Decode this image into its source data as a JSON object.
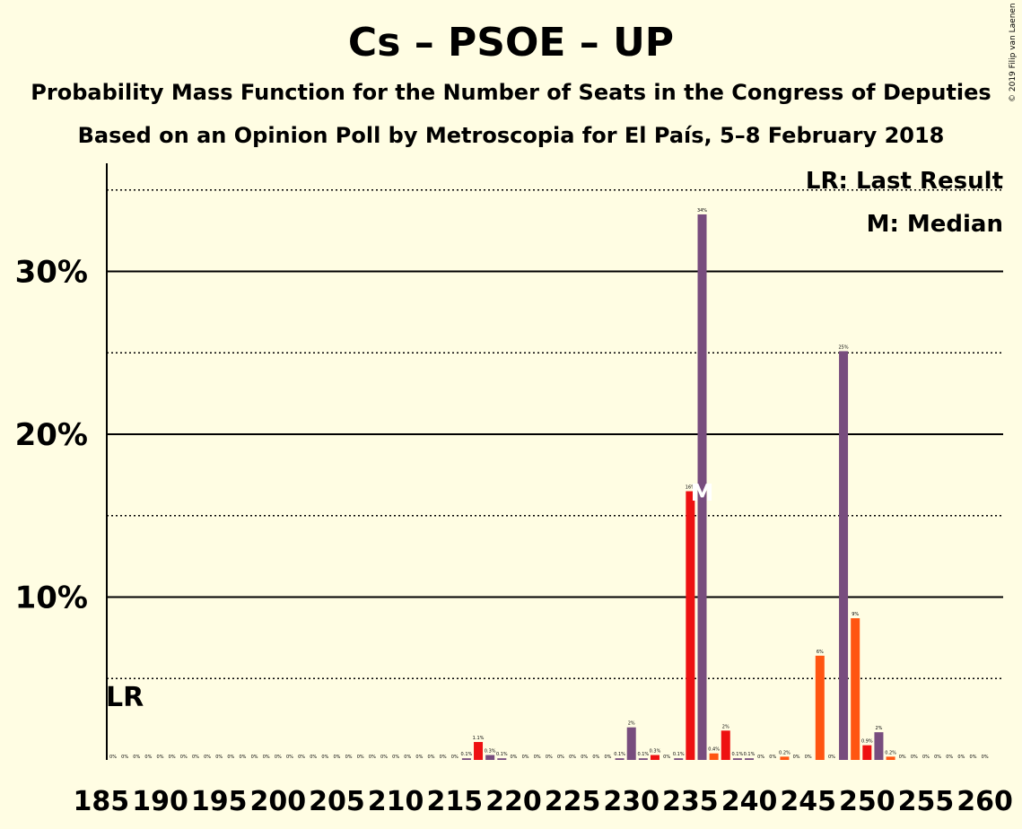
{
  "title": "Cs – PSOE – UP",
  "subtitle_1": "Probability Mass Function for the Number of Seats in the Congress of Deputies",
  "subtitle_2": "Based on an Opinion Poll by Metroscopia for El País, 5–8 February 2018",
  "copyright": "© 2019 Filip van Laenen",
  "legend": {
    "lr": "LR: Last Result",
    "median": "M: Median"
  },
  "markers": {
    "last_result_label": "LR",
    "last_result_seat": 187,
    "median_label": "M",
    "median_seat": 236
  },
  "colors": {
    "background": "#fffde3",
    "red": "#ee1111",
    "orange": "#ff5511",
    "purple": "#784d7e"
  },
  "chart_data": {
    "type": "bar",
    "xlim": [
      185,
      260
    ],
    "ylim": [
      0,
      35
    ],
    "y_ticks": [
      10,
      20,
      30
    ],
    "y_tick_labels": [
      "10%",
      "20%",
      "30%"
    ],
    "x_ticks": [
      185,
      190,
      195,
      200,
      205,
      210,
      215,
      220,
      225,
      230,
      235,
      240,
      245,
      250,
      255,
      260
    ],
    "x_tick_labels": [
      "185",
      "190",
      "195",
      "200",
      "205",
      "210",
      "215",
      "220",
      "225",
      "230",
      "235",
      "240",
      "245",
      "250",
      "255",
      "260"
    ],
    "bars": [
      {
        "x": 186,
        "v": 0,
        "label": "0%",
        "c": "purple"
      },
      {
        "x": 187,
        "v": 0,
        "label": "0%",
        "c": "purple"
      },
      {
        "x": 188,
        "v": 0,
        "label": "0%",
        "c": "purple"
      },
      {
        "x": 189,
        "v": 0,
        "label": "0%",
        "c": "purple"
      },
      {
        "x": 190,
        "v": 0,
        "label": "0%",
        "c": "purple"
      },
      {
        "x": 191,
        "v": 0,
        "label": "0%",
        "c": "purple"
      },
      {
        "x": 192,
        "v": 0,
        "label": "0%",
        "c": "purple"
      },
      {
        "x": 193,
        "v": 0,
        "label": "0%",
        "c": "purple"
      },
      {
        "x": 194,
        "v": 0,
        "label": "0%",
        "c": "purple"
      },
      {
        "x": 195,
        "v": 0,
        "label": "0%",
        "c": "purple"
      },
      {
        "x": 196,
        "v": 0,
        "label": "0%",
        "c": "purple"
      },
      {
        "x": 197,
        "v": 0,
        "label": "0%",
        "c": "purple"
      },
      {
        "x": 198,
        "v": 0,
        "label": "0%",
        "c": "purple"
      },
      {
        "x": 199,
        "v": 0,
        "label": "0%",
        "c": "purple"
      },
      {
        "x": 200,
        "v": 0,
        "label": "0%",
        "c": "purple"
      },
      {
        "x": 201,
        "v": 0,
        "label": "0%",
        "c": "purple"
      },
      {
        "x": 202,
        "v": 0,
        "label": "0%",
        "c": "purple"
      },
      {
        "x": 203,
        "v": 0,
        "label": "0%",
        "c": "purple"
      },
      {
        "x": 204,
        "v": 0,
        "label": "0%",
        "c": "purple"
      },
      {
        "x": 205,
        "v": 0,
        "label": "0%",
        "c": "purple"
      },
      {
        "x": 206,
        "v": 0,
        "label": "0%",
        "c": "purple"
      },
      {
        "x": 207,
        "v": 0,
        "label": "0%",
        "c": "purple"
      },
      {
        "x": 208,
        "v": 0,
        "label": "0%",
        "c": "purple"
      },
      {
        "x": 209,
        "v": 0,
        "label": "0%",
        "c": "purple"
      },
      {
        "x": 210,
        "v": 0,
        "label": "0%",
        "c": "purple"
      },
      {
        "x": 211,
        "v": 0,
        "label": "0%",
        "c": "purple"
      },
      {
        "x": 212,
        "v": 0,
        "label": "0%",
        "c": "purple"
      },
      {
        "x": 213,
        "v": 0,
        "label": "0%",
        "c": "purple"
      },
      {
        "x": 214,
        "v": 0,
        "label": "0%",
        "c": "purple"
      },
      {
        "x": 215,
        "v": 0,
        "label": "0%",
        "c": "purple"
      },
      {
        "x": 216,
        "v": 0.1,
        "label": "0.1%",
        "c": "purple"
      },
      {
        "x": 217,
        "v": 1.1,
        "label": "1.1%",
        "c": "red"
      },
      {
        "x": 218,
        "v": 0.3,
        "label": "0.3%",
        "c": "purple"
      },
      {
        "x": 219,
        "v": 0.1,
        "label": "0.1%",
        "c": "purple"
      },
      {
        "x": 220,
        "v": 0,
        "label": "0%",
        "c": "purple"
      },
      {
        "x": 221,
        "v": 0,
        "label": "0%",
        "c": "purple"
      },
      {
        "x": 222,
        "v": 0,
        "label": "0%",
        "c": "purple"
      },
      {
        "x": 223,
        "v": 0,
        "label": "0%",
        "c": "purple"
      },
      {
        "x": 224,
        "v": 0,
        "label": "0%",
        "c": "purple"
      },
      {
        "x": 225,
        "v": 0,
        "label": "0%",
        "c": "purple"
      },
      {
        "x": 226,
        "v": 0,
        "label": "0%",
        "c": "purple"
      },
      {
        "x": 227,
        "v": 0,
        "label": "0%",
        "c": "purple"
      },
      {
        "x": 228,
        "v": 0,
        "label": "0%",
        "c": "purple"
      },
      {
        "x": 229,
        "v": 0.1,
        "label": "0.1%",
        "c": "purple"
      },
      {
        "x": 230,
        "v": 2.0,
        "label": "2%",
        "c": "purple"
      },
      {
        "x": 231,
        "v": 0.1,
        "label": "0.1%",
        "c": "purple"
      },
      {
        "x": 232,
        "v": 0.3,
        "label": "0.3%",
        "c": "red"
      },
      {
        "x": 233,
        "v": 0,
        "label": "0%",
        "c": "purple"
      },
      {
        "x": 234,
        "v": 0.1,
        "label": "0.1%",
        "c": "purple"
      },
      {
        "x": 235,
        "v": 16.5,
        "label": "16%",
        "c": "red"
      },
      {
        "x": 236,
        "v": 33.5,
        "label": "34%",
        "c": "purple"
      },
      {
        "x": 237,
        "v": 0.4,
        "label": "0.4%",
        "c": "orange"
      },
      {
        "x": 238,
        "v": 1.8,
        "label": "2%",
        "c": "red"
      },
      {
        "x": 239,
        "v": 0.1,
        "label": "0.1%",
        "c": "purple"
      },
      {
        "x": 240,
        "v": 0.1,
        "label": "0.1%",
        "c": "purple"
      },
      {
        "x": 241,
        "v": 0,
        "label": "0%",
        "c": "purple"
      },
      {
        "x": 242,
        "v": 0,
        "label": "0%",
        "c": "purple"
      },
      {
        "x": 243,
        "v": 0.2,
        "label": "0.2%",
        "c": "orange"
      },
      {
        "x": 244,
        "v": 0,
        "label": "0%",
        "c": "purple"
      },
      {
        "x": 245,
        "v": 0,
        "label": "0%",
        "c": "purple"
      },
      {
        "x": 246,
        "v": 6.4,
        "label": "6%",
        "c": "orange"
      },
      {
        "x": 247,
        "v": 0,
        "label": "0%",
        "c": "purple"
      },
      {
        "x": 248,
        "v": 25.1,
        "label": "25%",
        "c": "purple"
      },
      {
        "x": 249,
        "v": 8.7,
        "label": "9%",
        "c": "orange"
      },
      {
        "x": 250,
        "v": 0.9,
        "label": "0.9%",
        "c": "red"
      },
      {
        "x": 251,
        "v": 1.7,
        "label": "2%",
        "c": "purple"
      },
      {
        "x": 252,
        "v": 0.2,
        "label": "0.2%",
        "c": "orange"
      },
      {
        "x": 253,
        "v": 0,
        "label": "0%",
        "c": "purple"
      },
      {
        "x": 254,
        "v": 0,
        "label": "0%",
        "c": "purple"
      },
      {
        "x": 255,
        "v": 0,
        "label": "0%",
        "c": "purple"
      },
      {
        "x": 256,
        "v": 0,
        "label": "0%",
        "c": "purple"
      },
      {
        "x": 257,
        "v": 0,
        "label": "0%",
        "c": "purple"
      },
      {
        "x": 258,
        "v": 0,
        "label": "0%",
        "c": "purple"
      },
      {
        "x": 259,
        "v": 0,
        "label": "0%",
        "c": "purple"
      },
      {
        "x": 260,
        "v": 0,
        "label": "0%",
        "c": "purple"
      }
    ]
  }
}
